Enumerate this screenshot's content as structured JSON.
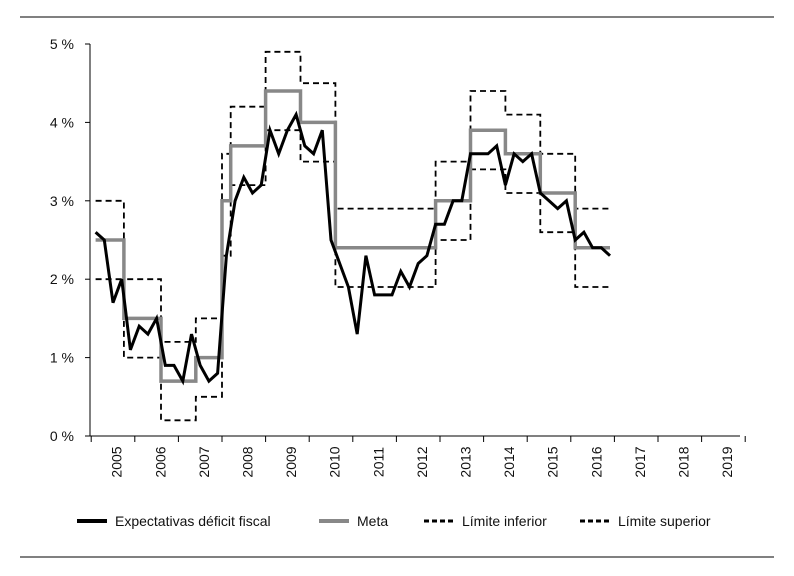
{
  "chart_data": {
    "type": "line",
    "title": "",
    "xlabel": "",
    "ylabel": "",
    "x_start_year": 2005,
    "x_end_year": 2019,
    "x_range": [
      2004.5,
      2019.75
    ],
    "ylim": [
      0,
      5
    ],
    "yticks": [
      {
        "value": 0,
        "label": "0 %"
      },
      {
        "value": 1,
        "label": "1 %"
      },
      {
        "value": 2,
        "label": "2 %"
      },
      {
        "value": 3,
        "label": "3 %"
      },
      {
        "value": 4,
        "label": "4 %"
      },
      {
        "value": 5,
        "label": "5 %"
      }
    ],
    "xticks": [
      {
        "value": 2005,
        "label": "2005"
      },
      {
        "value": 2006,
        "label": "2006"
      },
      {
        "value": 2007,
        "label": "2007"
      },
      {
        "value": 2008,
        "label": "2008"
      },
      {
        "value": 2009,
        "label": "2009"
      },
      {
        "value": 2010,
        "label": "2010"
      },
      {
        "value": 2011,
        "label": "2011"
      },
      {
        "value": 2012,
        "label": "2012"
      },
      {
        "value": 2013,
        "label": "2013"
      },
      {
        "value": 2014,
        "label": "2014"
      },
      {
        "value": 2015,
        "label": "2015"
      },
      {
        "value": 2016,
        "label": "2016"
      },
      {
        "value": 2017,
        "label": "2017"
      },
      {
        "value": 2018,
        "label": "2018"
      },
      {
        "value": 2019,
        "label": "2019"
      }
    ],
    "grid": false,
    "legend_position": "bottom",
    "series": [
      {
        "name": "Expectativas déficit fiscal",
        "color": "#000000",
        "style": "solid",
        "width": 3,
        "points": [
          [
            2004.6,
            2.6
          ],
          [
            2004.8,
            2.5
          ],
          [
            2005.0,
            1.7
          ],
          [
            2005.2,
            2.0
          ],
          [
            2005.4,
            1.1
          ],
          [
            2005.6,
            1.4
          ],
          [
            2005.8,
            1.3
          ],
          [
            2006.0,
            1.5
          ],
          [
            2006.2,
            0.9
          ],
          [
            2006.4,
            0.9
          ],
          [
            2006.6,
            0.7
          ],
          [
            2006.8,
            1.3
          ],
          [
            2007.0,
            0.9
          ],
          [
            2007.2,
            0.7
          ],
          [
            2007.4,
            0.8
          ],
          [
            2007.6,
            2.3
          ],
          [
            2007.8,
            3.0
          ],
          [
            2008.0,
            3.3
          ],
          [
            2008.2,
            3.1
          ],
          [
            2008.4,
            3.2
          ],
          [
            2008.6,
            3.9
          ],
          [
            2008.8,
            3.6
          ],
          [
            2009.0,
            3.9
          ],
          [
            2009.2,
            4.1
          ],
          [
            2009.4,
            3.7
          ],
          [
            2009.6,
            3.6
          ],
          [
            2009.8,
            3.9
          ],
          [
            2010.0,
            2.5
          ],
          [
            2010.2,
            2.2
          ],
          [
            2010.4,
            1.9
          ],
          [
            2010.6,
            1.3
          ],
          [
            2010.8,
            2.3
          ],
          [
            2011.0,
            1.8
          ],
          [
            2011.2,
            1.8
          ],
          [
            2011.4,
            1.8
          ],
          [
            2011.6,
            2.1
          ],
          [
            2011.8,
            1.9
          ],
          [
            2012.0,
            2.2
          ],
          [
            2012.2,
            2.3
          ],
          [
            2012.4,
            2.7
          ],
          [
            2012.6,
            2.7
          ],
          [
            2012.8,
            3.0
          ],
          [
            2013.0,
            3.0
          ],
          [
            2013.2,
            3.6
          ],
          [
            2013.4,
            3.6
          ],
          [
            2013.6,
            3.6
          ],
          [
            2013.8,
            3.7
          ],
          [
            2014.0,
            3.2
          ],
          [
            2014.2,
            3.6
          ],
          [
            2014.4,
            3.5
          ],
          [
            2014.6,
            3.6
          ],
          [
            2014.8,
            3.1
          ],
          [
            2015.0,
            3.0
          ],
          [
            2015.2,
            2.9
          ],
          [
            2015.4,
            3.0
          ],
          [
            2015.6,
            2.5
          ],
          [
            2015.8,
            2.6
          ],
          [
            2016.0,
            2.4
          ],
          [
            2016.2,
            2.4
          ],
          [
            2016.4,
            2.3
          ]
        ]
      },
      {
        "name": "Meta",
        "color": "#888888",
        "style": "solid",
        "width": 3.5,
        "points": [
          [
            2004.6,
            2.5
          ],
          [
            2005.25,
            2.5
          ],
          [
            2005.25,
            1.5
          ],
          [
            2006.1,
            1.5
          ],
          [
            2006.1,
            0.7
          ],
          [
            2006.9,
            0.7
          ],
          [
            2006.9,
            1.0
          ],
          [
            2007.5,
            1.0
          ],
          [
            2007.5,
            3.0
          ],
          [
            2007.7,
            3.0
          ],
          [
            2007.7,
            3.7
          ],
          [
            2008.5,
            3.7
          ],
          [
            2008.5,
            4.4
          ],
          [
            2009.3,
            4.4
          ],
          [
            2009.3,
            4.0
          ],
          [
            2010.1,
            4.0
          ],
          [
            2010.1,
            2.4
          ],
          [
            2012.4,
            2.4
          ],
          [
            2012.4,
            3.0
          ],
          [
            2013.2,
            3.0
          ],
          [
            2013.2,
            3.9
          ],
          [
            2014.0,
            3.9
          ],
          [
            2014.0,
            3.6
          ],
          [
            2014.8,
            3.6
          ],
          [
            2014.8,
            3.1
          ],
          [
            2015.6,
            3.1
          ],
          [
            2015.6,
            2.4
          ],
          [
            2016.4,
            2.4
          ]
        ]
      },
      {
        "name": "Límite inferior",
        "color": "#000000",
        "style": "dashed",
        "width": 1.8,
        "points": [
          [
            2004.6,
            2.0
          ],
          [
            2005.25,
            2.0
          ],
          [
            2005.25,
            1.0
          ],
          [
            2006.1,
            1.0
          ],
          [
            2006.1,
            0.2
          ],
          [
            2006.9,
            0.2
          ],
          [
            2006.9,
            0.5
          ],
          [
            2007.5,
            0.5
          ],
          [
            2007.5,
            2.3
          ],
          [
            2007.7,
            2.3
          ],
          [
            2007.7,
            3.2
          ],
          [
            2008.5,
            3.2
          ],
          [
            2008.5,
            3.9
          ],
          [
            2009.3,
            3.9
          ],
          [
            2009.3,
            3.5
          ],
          [
            2010.1,
            3.5
          ],
          [
            2010.1,
            1.9
          ],
          [
            2012.4,
            1.9
          ],
          [
            2012.4,
            2.5
          ],
          [
            2013.2,
            2.5
          ],
          [
            2013.2,
            3.4
          ],
          [
            2014.0,
            3.4
          ],
          [
            2014.0,
            3.1
          ],
          [
            2014.8,
            3.1
          ],
          [
            2014.8,
            2.6
          ],
          [
            2015.6,
            2.6
          ],
          [
            2015.6,
            1.9
          ],
          [
            2016.4,
            1.9
          ]
        ]
      },
      {
        "name": "Límite superior",
        "color": "#000000",
        "style": "dashed",
        "width": 1.8,
        "points": [
          [
            2004.6,
            3.0
          ],
          [
            2005.25,
            3.0
          ],
          [
            2005.25,
            2.0
          ],
          [
            2006.1,
            2.0
          ],
          [
            2006.1,
            1.2
          ],
          [
            2006.9,
            1.2
          ],
          [
            2006.9,
            1.5
          ],
          [
            2007.5,
            1.5
          ],
          [
            2007.5,
            3.6
          ],
          [
            2007.7,
            3.6
          ],
          [
            2007.7,
            4.2
          ],
          [
            2008.5,
            4.2
          ],
          [
            2008.5,
            4.9
          ],
          [
            2009.3,
            4.9
          ],
          [
            2009.3,
            4.5
          ],
          [
            2010.1,
            4.5
          ],
          [
            2010.1,
            2.9
          ],
          [
            2012.4,
            2.9
          ],
          [
            2012.4,
            3.5
          ],
          [
            2013.2,
            3.5
          ],
          [
            2013.2,
            4.4
          ],
          [
            2014.0,
            4.4
          ],
          [
            2014.0,
            4.1
          ],
          [
            2014.8,
            4.1
          ],
          [
            2014.8,
            3.6
          ],
          [
            2015.6,
            3.6
          ],
          [
            2015.6,
            2.9
          ],
          [
            2016.4,
            2.9
          ]
        ]
      }
    ]
  }
}
